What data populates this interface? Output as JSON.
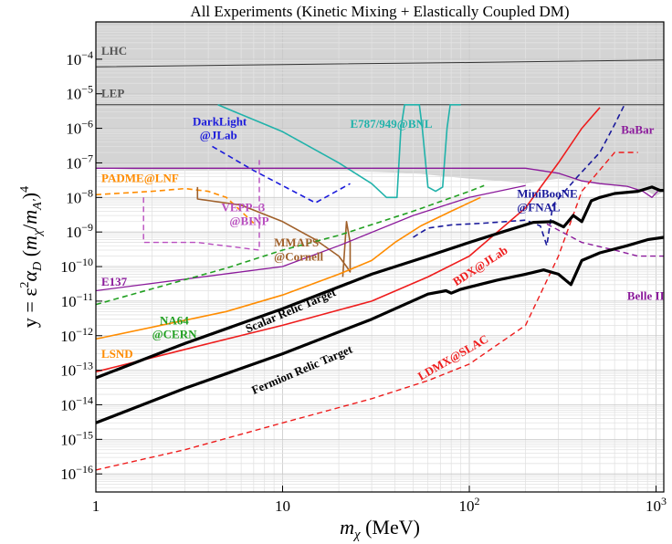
{
  "chart_data": {
    "type": "line",
    "title": "All Experiments (Kinetic Mixing + Elastically Coupled DM)",
    "xlabel": "m_χ (MeV)",
    "ylabel": "y = ε²α_D (m_χ/m_A′)⁴",
    "x_scale": "log",
    "y_scale": "log",
    "xlim": [
      1,
      1100
    ],
    "ylim": [
      3e-17,
      0.0012
    ],
    "grid": true,
    "x_ticks": [
      {
        "value": 1,
        "label": "1"
      },
      {
        "value": 10,
        "label": "10"
      },
      {
        "value": 100,
        "base": "10",
        "exp": "2"
      },
      {
        "value": 1000,
        "base": "10",
        "exp": "3"
      }
    ],
    "y_ticks": [
      {
        "value": 0.0001,
        "base": "10",
        "exp": "−4"
      },
      {
        "value": 1e-05,
        "base": "10",
        "exp": "−5"
      },
      {
        "value": 1e-06,
        "base": "10",
        "exp": "−6"
      },
      {
        "value": 1e-07,
        "base": "10",
        "exp": "−7"
      },
      {
        "value": 1e-08,
        "base": "10",
        "exp": "−8"
      },
      {
        "value": 1e-09,
        "base": "10",
        "exp": "−9"
      },
      {
        "value": 1e-10,
        "base": "10",
        "exp": "−10"
      },
      {
        "value": 1e-11,
        "base": "10",
        "exp": "−11"
      },
      {
        "value": 1e-12,
        "base": "10",
        "exp": "−12"
      },
      {
        "value": 1e-13,
        "base": "10",
        "exp": "−13"
      },
      {
        "value": 1e-14,
        "base": "10",
        "exp": "−14"
      },
      {
        "value": 1e-15,
        "base": "10",
        "exp": "−15"
      },
      {
        "value": 1e-16,
        "base": "10",
        "exp": "−16"
      }
    ],
    "excluded_region": [
      [
        1,
        7e-08
      ],
      [
        2,
        6e-08
      ],
      [
        4,
        6e-08
      ],
      [
        7,
        6e-08
      ],
      [
        10,
        6e-08
      ],
      [
        20,
        6e-08
      ],
      [
        50,
        5e-08
      ],
      [
        100,
        3.5e-08
      ],
      [
        200,
        2.6e-08
      ],
      [
        300,
        3.5e-08
      ],
      [
        500,
        2.5e-08
      ],
      [
        700,
        2e-08
      ],
      [
        900,
        1.5e-08
      ],
      [
        1000,
        1.1e-08
      ],
      [
        1100,
        1.5e-08
      ]
    ],
    "series": [
      {
        "name": "LHC",
        "color": "#333333",
        "style": "solid",
        "width": 1,
        "points": [
          [
            1,
            6e-05
          ],
          [
            10,
            7e-05
          ],
          [
            100,
            8e-05
          ],
          [
            1100,
            9.5e-05
          ]
        ]
      },
      {
        "name": "LEP",
        "color": "#333333",
        "style": "solid",
        "width": 1,
        "points": [
          [
            1,
            4.8e-06
          ],
          [
            1100,
            4.8e-06
          ]
        ]
      },
      {
        "name": "E787/949@BNL",
        "color": "#20b2aa",
        "style": "solid",
        "width": 1.6,
        "points": [
          [
            4.5,
            4.8e-06
          ],
          [
            10,
            8e-07
          ],
          [
            20,
            1e-07
          ],
          [
            30,
            2.5e-08
          ],
          [
            36,
            1e-08
          ],
          [
            41,
            1e-08
          ],
          [
            43,
            1e-06
          ],
          [
            45,
            4.8e-06
          ],
          [
            54,
            4.8e-06
          ],
          [
            56,
            1e-06
          ],
          [
            60,
            2e-08
          ],
          [
            66,
            1.5e-08
          ],
          [
            72,
            2e-08
          ],
          [
            76,
            1e-06
          ],
          [
            79,
            4.8e-06
          ],
          [
            90,
            4.8e-06
          ]
        ]
      },
      {
        "name": "DarkLight @JLab",
        "color": "#1a1adb",
        "style": "dashed",
        "width": 1.6,
        "points": [
          [
            4.2,
            3e-07
          ],
          [
            7,
            6e-08
          ],
          [
            15,
            7e-09
          ],
          [
            23,
            2.5e-08
          ]
        ]
      },
      {
        "name": "BaBar",
        "color": "#8b1a9b",
        "style": "solid",
        "width": 1.3,
        "points": [
          [
            1,
            7e-08
          ],
          [
            10,
            7e-08
          ],
          [
            50,
            7e-08
          ],
          [
            100,
            7e-08
          ],
          [
            200,
            7e-08
          ],
          [
            300,
            5e-08
          ],
          [
            400,
            3e-08
          ],
          [
            500,
            2.5e-08
          ],
          [
            700,
            2.1e-08
          ],
          [
            850,
            1.5e-08
          ],
          [
            950,
            1e-08
          ],
          [
            1030,
            1.6e-08
          ],
          [
            1100,
            1.5e-08
          ]
        ]
      },
      {
        "name": "PADME@LNF",
        "color": "#ff8c00",
        "style": "dashed",
        "width": 1.6,
        "points": [
          [
            1,
            1.2e-08
          ],
          [
            2,
            1.5e-08
          ],
          [
            3,
            1.8e-08
          ],
          [
            4,
            1.5e-08
          ],
          [
            5,
            1e-08
          ],
          [
            6,
            4e-09
          ],
          [
            7,
            1.8e-09
          ]
        ]
      },
      {
        "name": "VEPP−3 @BINP",
        "color": "#b84dbf",
        "style": "dashed",
        "width": 1.4,
        "points": [
          [
            1.8,
            1e-08
          ],
          [
            1.8,
            5e-10
          ],
          [
            3.5,
            5e-10
          ],
          [
            7.5,
            3e-10
          ],
          [
            7.5,
            1.2e-07
          ]
        ]
      },
      {
        "name": "MMAPS @Cornell",
        "color": "#a0602a",
        "style": "solid",
        "width": 1.6,
        "points": [
          [
            3.5,
            2e-08
          ],
          [
            3.5,
            9e-09
          ],
          [
            6,
            6e-09
          ],
          [
            10,
            2e-09
          ],
          [
            15,
            6e-10
          ],
          [
            20,
            2e-10
          ],
          [
            22,
            1e-10
          ],
          [
            23,
            7e-11
          ],
          [
            23,
            5e-10
          ],
          [
            22,
            2e-09
          ],
          [
            21,
            5e-11
          ]
        ]
      },
      {
        "name": "E137",
        "color": "#8b1a9b",
        "style": "solid",
        "width": 1.3,
        "points": [
          [
            1,
            2e-11
          ],
          [
            10,
            1e-10
          ],
          [
            20,
            4e-10
          ],
          [
            50,
            3e-09
          ],
          [
            100,
            1e-08
          ],
          [
            200,
            2.2e-08
          ]
        ]
      },
      {
        "name": "LSND",
        "color": "#ff8c00",
        "style": "solid",
        "width": 1.6,
        "points": [
          [
            1,
            8e-13
          ],
          [
            5,
            5e-12
          ],
          [
            10,
            1.5e-11
          ],
          [
            20,
            6e-11
          ],
          [
            30,
            1.5e-10
          ],
          [
            40,
            5e-10
          ],
          [
            55,
            1.5e-09
          ],
          [
            80,
            4e-09
          ],
          [
            115,
            1e-08
          ]
        ]
      },
      {
        "name": "NA64 @CERN",
        "color": "#22a022",
        "style": "dashed",
        "width": 1.6,
        "points": [
          [
            1,
            8e-12
          ],
          [
            5,
            9e-11
          ],
          [
            10,
            3e-10
          ],
          [
            20,
            8e-10
          ],
          [
            50,
            4e-09
          ],
          [
            100,
            1.5e-08
          ],
          [
            120,
            2.2e-08
          ]
        ]
      },
      {
        "name": "MiniBooNE @FNAL",
        "color": "#1a1a9b",
        "style": "dashed",
        "width": 1.6,
        "points": [
          [
            50,
            7e-10
          ],
          [
            60,
            1.3e-09
          ],
          [
            80,
            1.6e-09
          ],
          [
            120,
            1.8e-09
          ],
          [
            200,
            2.2e-09
          ],
          [
            240,
            1.5e-09
          ],
          [
            260,
            4e-10
          ],
          [
            280,
            6e-09
          ],
          [
            380,
            4e-08
          ],
          [
            500,
            2e-07
          ],
          [
            600,
            1.3e-06
          ],
          [
            680,
            5e-06
          ]
        ]
      },
      {
        "name": "Belle II",
        "color": "#8b1a9b",
        "style": "dashed",
        "width": 1.4,
        "points": [
          [
            260,
            1.7e-09
          ],
          [
            400,
            5e-10
          ],
          [
            600,
            3e-10
          ],
          [
            800,
            2e-10
          ],
          [
            1100,
            2e-10
          ]
        ]
      },
      {
        "name": "BDX@JLab",
        "color": "#ee1c1c",
        "style": "solid",
        "width": 1.6,
        "points": [
          [
            1,
            9e-14
          ],
          [
            3,
            4e-13
          ],
          [
            10,
            2e-12
          ],
          [
            30,
            1e-11
          ],
          [
            60,
            5e-11
          ],
          [
            100,
            2e-10
          ],
          [
            200,
            5e-09
          ],
          [
            300,
            1e-07
          ],
          [
            400,
            1e-06
          ],
          [
            500,
            4e-06
          ]
        ]
      },
      {
        "name": "LDMX@SLAC",
        "color": "#ee1c1c",
        "style": "dashed",
        "width": 1.4,
        "points": [
          [
            1,
            1.3e-16
          ],
          [
            3,
            5e-16
          ],
          [
            10,
            3e-15
          ],
          [
            30,
            1.5e-14
          ],
          [
            60,
            5e-14
          ],
          [
            100,
            1.5e-13
          ],
          [
            200,
            2e-12
          ],
          [
            300,
            2e-10
          ],
          [
            400,
            1.5e-08
          ],
          [
            600,
            2e-07
          ],
          [
            800,
            2e-07
          ]
        ]
      },
      {
        "name": "Scalar Relic Target",
        "color": "#000000",
        "style": "solid",
        "width": 3.2,
        "points": [
          [
            1,
            6e-14
          ],
          [
            3,
            6e-13
          ],
          [
            10,
            6e-12
          ],
          [
            30,
            6e-11
          ],
          [
            60,
            2e-10
          ],
          [
            100,
            5e-10
          ],
          [
            150,
            1e-09
          ],
          [
            220,
            1.9e-09
          ],
          [
            280,
            2e-09
          ],
          [
            320,
            1.4e-09
          ],
          [
            360,
            3e-09
          ],
          [
            400,
            2e-09
          ],
          [
            450,
            8e-09
          ],
          [
            500,
            1e-08
          ],
          [
            600,
            1.3e-08
          ],
          [
            800,
            1.5e-08
          ],
          [
            950,
            2e-08
          ],
          [
            1050,
            1.6e-08
          ],
          [
            1100,
            1.6e-08
          ]
        ]
      },
      {
        "name": "Fermion Relic Target",
        "color": "#000000",
        "style": "solid",
        "width": 3.2,
        "points": [
          [
            1,
            3e-15
          ],
          [
            3,
            3e-14
          ],
          [
            10,
            3e-13
          ],
          [
            30,
            3e-12
          ],
          [
            60,
            1.6e-11
          ],
          [
            75,
            2e-11
          ],
          [
            80,
            1.7e-11
          ],
          [
            90,
            2.2e-11
          ],
          [
            140,
            4e-11
          ],
          [
            200,
            6e-11
          ],
          [
            250,
            8e-11
          ],
          [
            300,
            6e-11
          ],
          [
            350,
            3e-11
          ],
          [
            400,
            1.5e-10
          ],
          [
            500,
            2.5e-10
          ],
          [
            700,
            4e-10
          ],
          [
            900,
            6e-10
          ],
          [
            1100,
            7e-10
          ]
        ]
      }
    ],
    "annotations": [
      {
        "text": "LHC",
        "color": "#555555",
        "x": 1.07,
        "y": 0.000135
      },
      {
        "text": "LEP",
        "color": "#555555",
        "x": 1.07,
        "y": 8e-06
      },
      {
        "text": "DarkLight",
        "color": "#1a1adb",
        "x": 3.3,
        "y": 1.2e-06
      },
      {
        "text": "@JLab",
        "color": "#1a1adb",
        "x": 3.6,
        "y": 4.8e-07
      },
      {
        "text": "E787/949@BNL",
        "color": "#20b2aa",
        "x": 23,
        "y": 1.05e-06
      },
      {
        "text": "BaBar",
        "color": "#8b1a9b",
        "x": 650,
        "y": 7e-07
      },
      {
        "text": "PADME@LNF",
        "color": "#ff8c00",
        "x": 1.07,
        "y": 2.8e-08
      },
      {
        "text": "VEPP−3",
        "color": "#b84dbf",
        "x": 4.7,
        "y": 4e-09
      },
      {
        "text": "@BINP",
        "color": "#b84dbf",
        "x": 5.2,
        "y": 1.6e-09
      },
      {
        "text": "MMAPS",
        "color": "#a0602a",
        "x": 9,
        "y": 3.8e-10
      },
      {
        "text": "@Cornell",
        "color": "#a0602a",
        "x": 9,
        "y": 1.5e-10
      },
      {
        "text": "MiniBooNE",
        "color": "#1a1a9b",
        "x": 180,
        "y": 1e-08
      },
      {
        "text": "@FNAL",
        "color": "#1a1a9b",
        "x": 180,
        "y": 4e-09
      },
      {
        "text": "E137",
        "color": "#8b1a9b",
        "x": 1.07,
        "y": 2.8e-11
      },
      {
        "text": "Belle II",
        "color": "#8b1a9b",
        "x": 700,
        "y": 1.1e-11
      },
      {
        "text": "NA64",
        "color": "#22a022",
        "x": 2.2,
        "y": 2.1e-12
      },
      {
        "text": "@CERN",
        "color": "#22a022",
        "x": 2.0,
        "y": 8.5e-13
      },
      {
        "text": "LSND",
        "color": "#ff8c00",
        "x": 1.07,
        "y": 2.3e-13
      },
      {
        "text": "BDX@JLab",
        "color": "#ee1c1c",
        "x": 85,
        "y": 2.7e-11,
        "rotate": -33
      },
      {
        "text": "Scalar Relic Target",
        "color": "#000000",
        "x": 6.5,
        "y": 1.2e-12,
        "rotate": -23
      },
      {
        "text": "Fermion Relic Target",
        "color": "#000000",
        "x": 7,
        "y": 2e-14,
        "rotate": -23
      },
      {
        "text": "LDMX@SLAC",
        "color": "#ee1c1c",
        "x": 55,
        "y": 5e-14,
        "rotate": -30
      }
    ]
  }
}
